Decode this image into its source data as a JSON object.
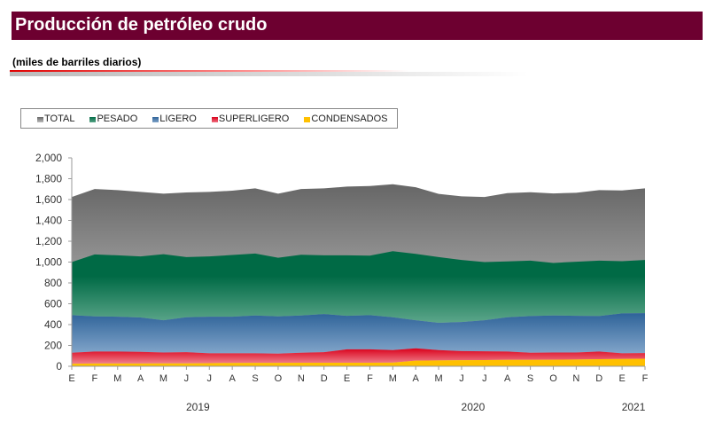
{
  "header": {
    "title": "Producción de petróleo crudo",
    "subtitle": "(miles de barriles diarios)"
  },
  "chart_data": {
    "type": "area",
    "stacked": true,
    "title": "Producción de petróleo crudo",
    "subtitle": "(miles de barriles diarios)",
    "xlabel": "",
    "ylabel": "",
    "ylim": [
      0,
      2000
    ],
    "yticks": [
      "0",
      "200",
      "400",
      "600",
      "800",
      "1,000",
      "1,200",
      "1,400",
      "1,600",
      "1,800",
      "2,000"
    ],
    "categories": [
      "E",
      "F",
      "M",
      "A",
      "M",
      "J",
      "J",
      "A",
      "S",
      "O",
      "N",
      "D",
      "E",
      "F",
      "M",
      "A",
      "M",
      "J",
      "J",
      "A",
      "S",
      "O",
      "N",
      "D",
      "E",
      "F"
    ],
    "years": [
      "2019",
      "2020",
      "2021"
    ],
    "legend_position": "top",
    "grid": false,
    "series": [
      {
        "name": "TOTAL",
        "color": "#7a7a7a",
        "values": [
          1625,
          1701,
          1690,
          1673,
          1656,
          1668,
          1673,
          1685,
          1707,
          1656,
          1701,
          1707,
          1724,
          1730,
          1747,
          1718,
          1654,
          1631,
          1625,
          1662,
          1670,
          1659,
          1665,
          1690,
          1687,
          1707
        ]
      },
      {
        "name": "PESADO",
        "color": "#006a45",
        "values": [
          510,
          594,
          589,
          586,
          634,
          578,
          578,
          592,
          595,
          563,
          583,
          564,
          581,
          572,
          634,
          637,
          631,
          595,
          558,
          536,
          532,
          505,
          519,
          532,
          502,
          510
        ]
      },
      {
        "name": "LIGERO",
        "color": "#2e6399",
        "values": [
          360,
          338,
          335,
          330,
          310,
          335,
          352,
          352,
          363,
          358,
          357,
          366,
          321,
          327,
          315,
          270,
          262,
          279,
          298,
          329,
          352,
          355,
          352,
          341,
          383,
          383
        ]
      },
      {
        "name": "SUPERLIGERO",
        "color": "#d9001b",
        "values": [
          105,
          114,
          114,
          111,
          104,
          107,
          94,
          92,
          91,
          88,
          96,
          101,
          129,
          129,
          120,
          118,
          99,
          88,
          84,
          79,
          68,
          69,
          67,
          73,
          54,
          55
        ]
      },
      {
        "name": "CONDENSADOS",
        "color": "#ffc000",
        "values": [
          25,
          27,
          27,
          27,
          28,
          28,
          30,
          32,
          33,
          33,
          34,
          34,
          34,
          34,
          35,
          54,
          56,
          58,
          60,
          62,
          62,
          63,
          65,
          68,
          70,
          72
        ]
      }
    ]
  }
}
